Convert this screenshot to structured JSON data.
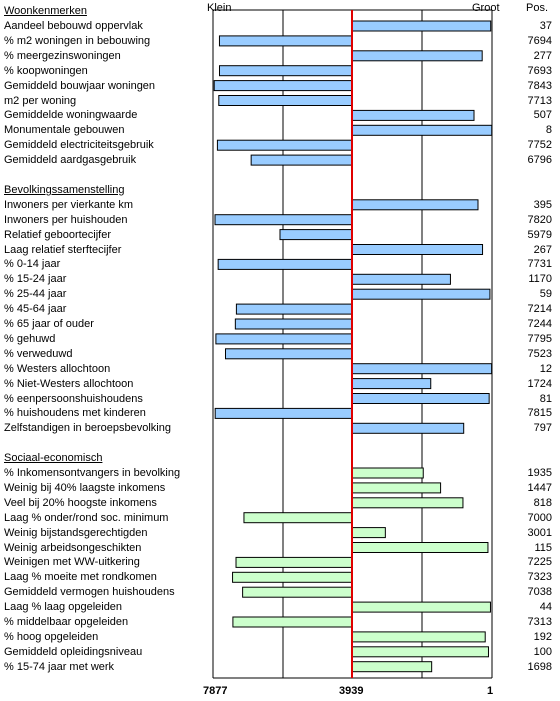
{
  "chart_data": {
    "type": "bar",
    "orientation": "horizontal",
    "header": {
      "left": "Klein",
      "right": "Groot",
      "pos": "Pos."
    },
    "axis": {
      "left_label": "7877",
      "center_label": "3939",
      "right_label": "1",
      "min": 7877,
      "center": 3939,
      "max": 1
    },
    "colors": {
      "blue": "#99ccff",
      "green": "#ccffcc",
      "center_line": "#e00000",
      "grid": "#000000"
    },
    "sections": [
      {
        "title": "Woonkenmerken",
        "color": "blue",
        "rows": [
          {
            "label": "Aandeel bebouwd oppervlak",
            "value": 37
          },
          {
            "label": "% m2 woningen in bebouwing",
            "value": 7694
          },
          {
            "label": "% meergezinswoningen",
            "value": 277
          },
          {
            "label": "% koopwoningen",
            "value": 7693
          },
          {
            "label": "Gemiddeld bouwjaar woningen",
            "value": 7843
          },
          {
            "label": "m2 per woning",
            "value": 7713
          },
          {
            "label": "Gemiddelde woningwaarde",
            "value": 507
          },
          {
            "label": "Monumentale gebouwen",
            "value": 8
          },
          {
            "label": "Gemiddeld electriciteitsgebruik",
            "value": 7752
          },
          {
            "label": "Gemiddeld aardgasgebruik",
            "value": 6796
          }
        ]
      },
      {
        "title": "Bevolkingssamenstelling",
        "color": "blue",
        "rows": [
          {
            "label": "Inwoners per vierkante km",
            "value": 395
          },
          {
            "label": "Inwoners per huishouden",
            "value": 7820
          },
          {
            "label": "Relatief geboortecijfer",
            "value": 5979
          },
          {
            "label": "Laag relatief sterftecijfer",
            "value": 267
          },
          {
            "label": "% 0-14 jaar",
            "value": 7731
          },
          {
            "label": "% 15-24 jaar",
            "value": 1170
          },
          {
            "label": "% 25-44 jaar",
            "value": 59
          },
          {
            "label": "% 45-64 jaar",
            "value": 7214
          },
          {
            "label": "% 65 jaar of ouder",
            "value": 7244
          },
          {
            "label": "% gehuwd",
            "value": 7795
          },
          {
            "label": "% verweduwd",
            "value": 7523
          },
          {
            "label": "% Westers allochtoon",
            "value": 12
          },
          {
            "label": "% Niet-Westers allochtoon",
            "value": 1724
          },
          {
            "label": "% eenpersoonshuishoudens",
            "value": 81
          },
          {
            "label": "% huishoudens met kinderen",
            "value": 7815
          },
          {
            "label": "Zelfstandigen in beroepsbevolking",
            "value": 797
          }
        ]
      },
      {
        "title": "Sociaal-economisch",
        "color": "green",
        "rows": [
          {
            "label": "% Inkomensontvangers in bevolking",
            "value": 1935
          },
          {
            "label": "Weinig bij 40% laagste inkomens",
            "value": 1447
          },
          {
            "label": "Veel bij 20% hoogste inkomens",
            "value": 818
          },
          {
            "label": "Laag % onder/rond soc. minimum",
            "value": 7000
          },
          {
            "label": "Weinig bijstandsgerechtigden",
            "value": 3001
          },
          {
            "label": "Weinig arbeidsongeschikten",
            "value": 115
          },
          {
            "label": "Weinigen met WW-uitkering",
            "value": 7225
          },
          {
            "label": "Laag % moeite met rondkomen",
            "value": 7323
          },
          {
            "label": "Gemiddeld vermogen huishoudens",
            "value": 7038
          },
          {
            "label": "Laag % laag opgeleiden",
            "value": 44
          },
          {
            "label": "% middelbaar opgeleiden",
            "value": 7313
          },
          {
            "label": "% hoog opgeleiden",
            "value": 192
          },
          {
            "label": "Gemiddeld opleidingsniveau",
            "value": 100
          },
          {
            "label": "% 15-74 jaar met werk",
            "value": 1698
          }
        ]
      }
    ]
  }
}
